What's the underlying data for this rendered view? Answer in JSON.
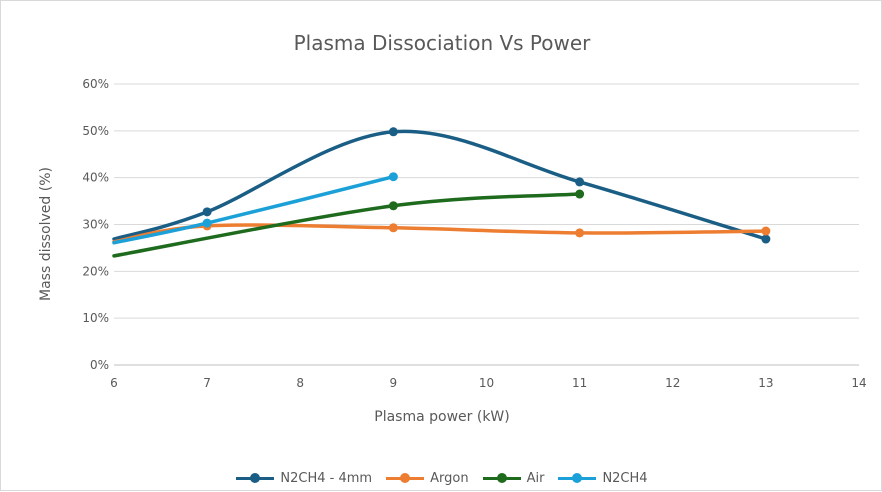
{
  "chart_data": {
    "type": "line",
    "title": "Plasma Dissociation Vs Power",
    "xlabel": "Plasma power (kW)",
    "ylabel": "Mass dissolved (%)",
    "xlim": [
      6,
      14
    ],
    "ylim": [
      0,
      60
    ],
    "x_ticks": [
      "6",
      "7",
      "8",
      "9",
      "10",
      "11",
      "12",
      "13",
      "14"
    ],
    "y_ticks": [
      "0%",
      "10%",
      "20%",
      "30%",
      "40%",
      "50%",
      "60%"
    ],
    "grid": true,
    "smoothed": true,
    "legend_position": "bottom",
    "series": [
      {
        "name": "N2CH4 - 4mm",
        "color": "#1a5e86",
        "x": [
          6,
          7,
          9,
          11,
          13
        ],
        "y": [
          26.9,
          32.7,
          49.8,
          39.1,
          26.9
        ]
      },
      {
        "name": "Argon",
        "color": "#ed7d31",
        "x": [
          6,
          7,
          9,
          11,
          13
        ],
        "y": [
          26.3,
          29.7,
          29.3,
          28.2,
          28.6
        ]
      },
      {
        "name": "Air",
        "color": "#1e6b1e",
        "x": [
          6,
          9,
          11
        ],
        "y": [
          23.3,
          34.0,
          36.5
        ]
      },
      {
        "name": "N2CH4",
        "color": "#1ba1d8",
        "x": [
          6,
          7,
          9
        ],
        "y": [
          26.1,
          30.3,
          40.2
        ]
      }
    ]
  }
}
